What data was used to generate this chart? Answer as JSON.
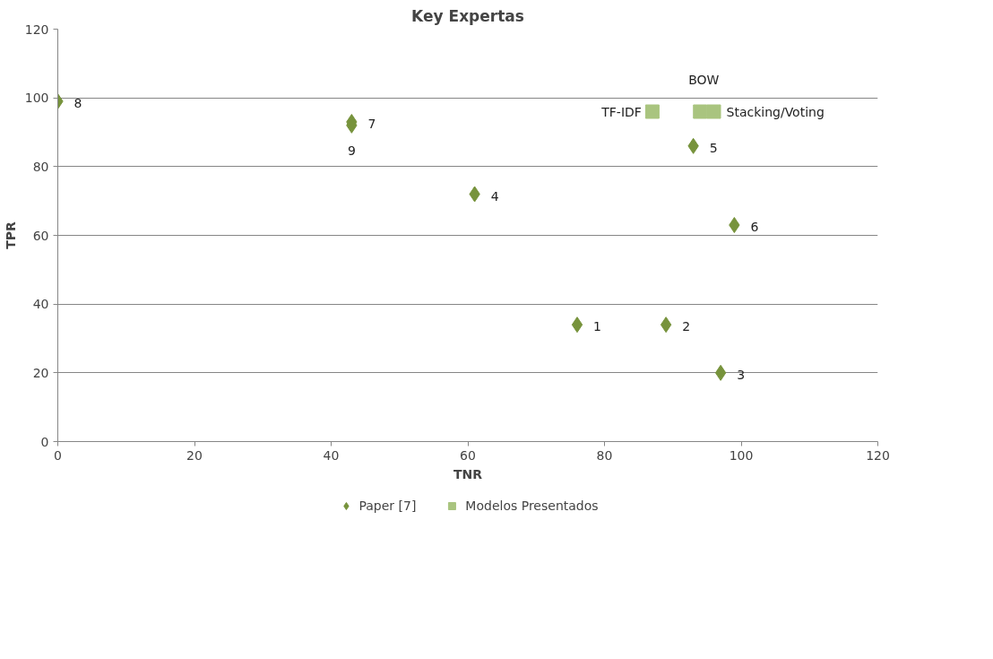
{
  "chart_data": {
    "type": "scatter",
    "title": "Key Expertas",
    "xlabel": "TNR",
    "ylabel": "TPR",
    "xlim": [
      0,
      120
    ],
    "ylim": [
      0,
      120
    ],
    "xticks": [
      0,
      20,
      40,
      60,
      80,
      100,
      120
    ],
    "yticks": [
      0,
      20,
      40,
      60,
      80,
      100,
      120
    ],
    "grid": "y",
    "legend": "bottom",
    "series": [
      {
        "name": "Paper [7]",
        "color": "#77933c",
        "marker": "diamond",
        "x": [
          76,
          89,
          97,
          61,
          93,
          99,
          43,
          0,
          43
        ],
        "values": [
          34,
          34,
          20,
          72,
          86,
          63,
          93,
          99,
          92
        ]
      },
      {
        "name": "Modelos Presentados",
        "color": "#a9c47f",
        "marker": "square",
        "x": [
          87,
          94,
          96
        ],
        "values": [
          96,
          96,
          96
        ]
      }
    ],
    "annotations": [
      {
        "text": "1",
        "x": 76,
        "y": 34
      },
      {
        "text": "2",
        "x": 89,
        "y": 34
      },
      {
        "text": "3",
        "x": 97,
        "y": 20
      },
      {
        "text": "4",
        "x": 61,
        "y": 72
      },
      {
        "text": "5",
        "x": 93,
        "y": 86
      },
      {
        "text": "6",
        "x": 99,
        "y": 63
      },
      {
        "text": "7",
        "x": 43,
        "y": 93
      },
      {
        "text": "8",
        "x": 0,
        "y": 99
      },
      {
        "text": "9",
        "x": 43,
        "y": 92
      },
      {
        "text": "TF-IDF",
        "x": 87,
        "y": 96
      },
      {
        "text": "BOW",
        "x": 94,
        "y": 96
      },
      {
        "text": "Stacking/Voting",
        "x": 96,
        "y": 96
      }
    ]
  }
}
